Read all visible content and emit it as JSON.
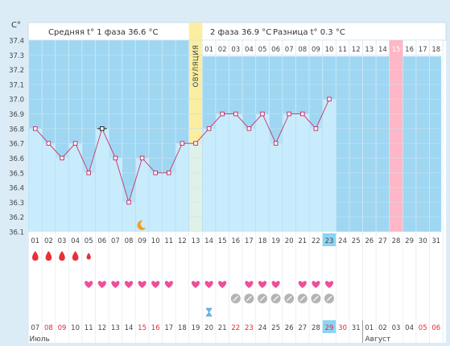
{
  "header": {
    "unit": "C°",
    "phase1_label": "Средняя t° 1 фаза",
    "phase1_value": "36.6 °C",
    "phase2_label": "2 фаза",
    "phase2_value": "36.9 °C",
    "diff_label": "Разница t°",
    "diff_value": "0.3 °C"
  },
  "ovulation_label": "ОВУЛЯЦИЯ",
  "phase2_days": [
    "01",
    "02",
    "03",
    "04",
    "05",
    "06",
    "07",
    "08",
    "09",
    "10",
    "11",
    "12",
    "13",
    "14",
    "15",
    "16",
    "17",
    "18"
  ],
  "cycle_days": [
    "01",
    "02",
    "03",
    "04",
    "05",
    "06",
    "07",
    "08",
    "09",
    "10",
    "11",
    "12",
    "13",
    "14",
    "15",
    "16",
    "17",
    "18",
    "19",
    "20",
    "21",
    "22",
    "23",
    "24",
    "25",
    "26",
    "27",
    "28",
    "29",
    "30",
    "31"
  ],
  "calendar_dates": [
    "07",
    "08",
    "09",
    "10",
    "11",
    "12",
    "13",
    "14",
    "15",
    "16",
    "17",
    "18",
    "19",
    "20",
    "21",
    "22",
    "23",
    "24",
    "25",
    "26",
    "27",
    "28",
    "29",
    "30",
    "31",
    "01",
    "02",
    "03",
    "04",
    "05",
    "06"
  ],
  "month_labels": [
    "Июль",
    "Август"
  ],
  "chart_data": {
    "type": "line",
    "ylabel": "C°",
    "ylim": [
      36.1,
      37.4
    ],
    "y_ticks": [
      "36.1",
      "36.2",
      "36.3",
      "36.4",
      "36.5",
      "36.6",
      "36.7",
      "36.8",
      "36.9",
      "37.0",
      "37.1",
      "37.2",
      "37.3",
      "37.4"
    ],
    "x": [
      1,
      2,
      3,
      4,
      5,
      6,
      7,
      8,
      9,
      10,
      11,
      12,
      13,
      14,
      15,
      16,
      17,
      18,
      19,
      20,
      21,
      22,
      23
    ],
    "values": [
      36.8,
      36.7,
      36.6,
      36.7,
      36.5,
      36.8,
      36.6,
      36.3,
      36.6,
      36.5,
      36.5,
      36.7,
      36.7,
      36.8,
      36.9,
      36.9,
      36.8,
      36.9,
      36.7,
      36.9,
      36.9,
      36.8,
      37.0
    ],
    "ovulation_day": 13,
    "phase2_start_day": 14,
    "highlighted_day": 23,
    "today_day": 28,
    "today_phase2_label": "15",
    "sleep_icon_day": 9,
    "menstruation": [
      {
        "day": 1,
        "size": "large"
      },
      {
        "day": 2,
        "size": "large"
      },
      {
        "day": 3,
        "size": "large"
      },
      {
        "day": 4,
        "size": "large"
      },
      {
        "day": 5,
        "size": "small"
      }
    ],
    "heart_days": [
      5,
      6,
      7,
      8,
      9,
      10,
      11,
      13,
      14,
      15,
      17,
      18,
      19,
      21,
      22,
      23
    ],
    "pill_days": [
      16,
      17,
      18,
      19,
      20,
      21,
      22,
      23
    ],
    "hourglass_day": 14,
    "red_date_indices": [
      1,
      2,
      8,
      9,
      15,
      16,
      22,
      23,
      29,
      30
    ],
    "colors": {
      "phase1_bg": "#9fd7f2",
      "phase2_bg": "#9fd7f2",
      "ovulation_band": "#fbeea0",
      "ovulation_band_low": "#fdf7cf",
      "today_band": "#ffb6c6",
      "fill": "#c9ecfc",
      "fill_dark": "#93cbe6",
      "line": "#c8336a",
      "marker_fill": "#ffffff",
      "heart": "#ee4f98",
      "drop": "#e8303a",
      "pill": "#b4b4b4",
      "highlight": "#8cd4f4",
      "red_text": "#e02a33"
    }
  }
}
